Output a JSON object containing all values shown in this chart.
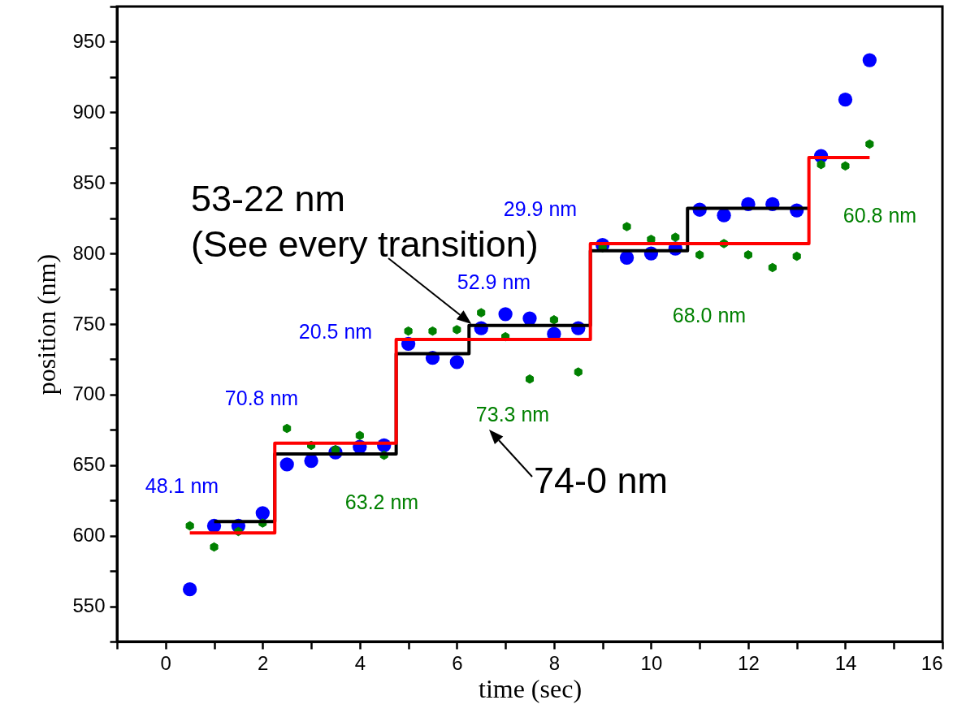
{
  "chart_data": {
    "type": "scatter",
    "xlabel": "time (sec)",
    "ylabel": "position (nm)",
    "xlim": [
      -1,
      16
    ],
    "ylim": [
      525,
      975
    ],
    "xticks": [
      {
        "value": -1,
        "label": null
      },
      0,
      {
        "value": 1,
        "label": null
      },
      2,
      {
        "value": 3,
        "label": null
      },
      4,
      {
        "value": 5,
        "label": null
      },
      6,
      {
        "value": 7,
        "label": null
      },
      8,
      {
        "value": 9,
        "label": null
      },
      10,
      {
        "value": 11,
        "label": null
      },
      12,
      {
        "value": 13,
        "label": null
      },
      14,
      {
        "value": 15,
        "label": null
      },
      16
    ],
    "yticks": [
      {
        "value": 525,
        "label": null
      },
      550,
      {
        "value": 575,
        "label": null
      },
      600,
      {
        "value": 625,
        "label": null
      },
      650,
      {
        "value": 675,
        "label": null
      },
      700,
      {
        "value": 725,
        "label": null
      },
      750,
      {
        "value": 775,
        "label": null
      },
      800,
      {
        "value": 825,
        "label": null
      },
      850,
      {
        "value": 875,
        "label": null
      },
      900,
      {
        "value": 925,
        "label": null
      },
      950,
      {
        "value": 975,
        "label": null
      }
    ],
    "grid": false,
    "series": [
      {
        "type": "step",
        "color": "#000000",
        "x": [
          1,
          2.25,
          4.75,
          6.25,
          8.75,
          10.75,
          13.25
        ],
        "values": [
          610,
          658,
          729,
          749,
          802,
          832,
          832
        ]
      },
      {
        "type": "step",
        "color": "#ff0000",
        "x": [
          0.5,
          2.25,
          4.75,
          8.75,
          13.25,
          14.5
        ],
        "values": [
          602,
          665.5,
          739,
          807,
          868,
          868
        ]
      },
      {
        "marker": "circle",
        "color": "#0000ff",
        "x": [
          0.5,
          1,
          1.5,
          2,
          2.5,
          3,
          3.5,
          4,
          4.5,
          5,
          5.5,
          6,
          6.5,
          7,
          7.5,
          8,
          8.5,
          9,
          9.5,
          10,
          10.5,
          11,
          11.5,
          12,
          12.5,
          13,
          13.5,
          14,
          14.5
        ],
        "values": [
          562,
          607,
          607,
          616,
          650.5,
          653,
          659,
          663,
          664,
          736,
          726,
          723,
          747,
          757,
          754,
          743,
          747,
          806,
          797,
          800,
          803.5,
          831,
          827,
          835,
          835,
          830.5,
          869,
          909,
          937
        ]
      },
      {
        "color": "#008000",
        "x": [
          0.5,
          1,
          1.5,
          2,
          2.5,
          3,
          3.5,
          4,
          4.5,
          5,
          5.5,
          6,
          6.5,
          7,
          7.5,
          8,
          8.5,
          9,
          9.5,
          10,
          10.5,
          11,
          11.5,
          12,
          12.5,
          13,
          13.5,
          14,
          14.5
        ],
        "values": [
          607,
          592,
          603,
          609,
          676,
          664,
          661,
          671,
          657,
          745,
          745,
          746,
          758,
          741,
          711,
          753,
          716,
          804,
          819,
          810,
          811.5,
          799,
          807,
          799,
          790,
          798,
          863,
          862,
          877.5
        ]
      }
    ],
    "annotations": [
      "48.1 nm",
      "70.8 nm",
      "20.5 nm",
      "52.9 nm",
      "29.9 nm",
      "63.2 nm",
      "73.3 nm",
      "68.0 nm",
      "60.8 nm",
      {
        "text": "53-22 nm\n(See every transition)",
        "x": 6.3,
        "y": 750
      },
      "74-0 nm"
    ]
  }
}
